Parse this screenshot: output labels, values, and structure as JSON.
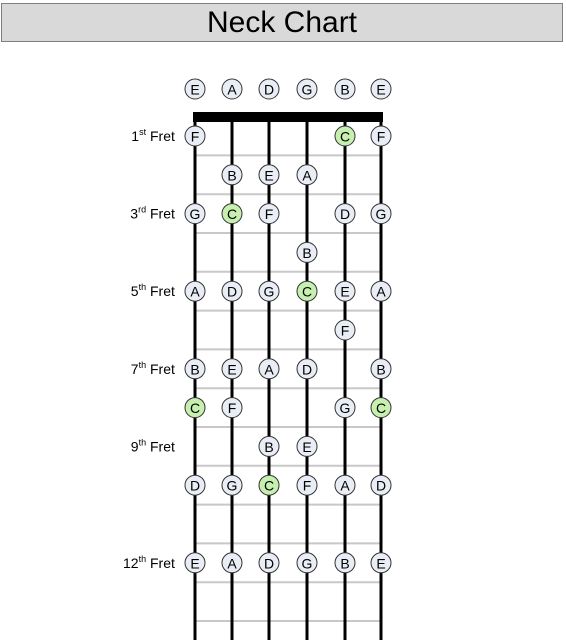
{
  "title": "Neck Chart",
  "colors": {
    "background": "#ffffff",
    "title_bg": "#d9d9d9",
    "fret_line": "#c8c8c8",
    "string_line": "#000000",
    "nut": "#000000",
    "note_fill": "#e9edf5",
    "note_highlight": "#c6efb0",
    "note_stroke": "#333333"
  },
  "open_strings": [
    "E",
    "A",
    "D",
    "G",
    "B",
    "E"
  ],
  "fret_labels": [
    {
      "fret": 1,
      "num": "1",
      "sup": "st",
      "word": "Fret"
    },
    {
      "fret": 3,
      "num": "3",
      "sup": "rd",
      "word": "Fret"
    },
    {
      "fret": 5,
      "num": "5",
      "sup": "th",
      "word": "Fret"
    },
    {
      "fret": 7,
      "num": "7",
      "sup": "th",
      "word": "Fret"
    },
    {
      "fret": 9,
      "num": "9",
      "sup": "th",
      "word": "Fret"
    },
    {
      "fret": 12,
      "num": "12",
      "sup": "th",
      "word": "Fret"
    }
  ],
  "highlight_note": "C",
  "notes": [
    {
      "fret": 1,
      "string": 1,
      "note": "F"
    },
    {
      "fret": 1,
      "string": 5,
      "note": "C"
    },
    {
      "fret": 1,
      "string": 6,
      "note": "F"
    },
    {
      "fret": 2,
      "string": 2,
      "note": "B"
    },
    {
      "fret": 2,
      "string": 3,
      "note": "E"
    },
    {
      "fret": 2,
      "string": 4,
      "note": "A"
    },
    {
      "fret": 3,
      "string": 1,
      "note": "G"
    },
    {
      "fret": 3,
      "string": 2,
      "note": "C"
    },
    {
      "fret": 3,
      "string": 3,
      "note": "F"
    },
    {
      "fret": 3,
      "string": 5,
      "note": "D"
    },
    {
      "fret": 3,
      "string": 6,
      "note": "G"
    },
    {
      "fret": 4,
      "string": 4,
      "note": "B"
    },
    {
      "fret": 5,
      "string": 1,
      "note": "A"
    },
    {
      "fret": 5,
      "string": 2,
      "note": "D"
    },
    {
      "fret": 5,
      "string": 3,
      "note": "G"
    },
    {
      "fret": 5,
      "string": 4,
      "note": "C"
    },
    {
      "fret": 5,
      "string": 5,
      "note": "E"
    },
    {
      "fret": 5,
      "string": 6,
      "note": "A"
    },
    {
      "fret": 6,
      "string": 5,
      "note": "F"
    },
    {
      "fret": 7,
      "string": 1,
      "note": "B"
    },
    {
      "fret": 7,
      "string": 2,
      "note": "E"
    },
    {
      "fret": 7,
      "string": 3,
      "note": "A"
    },
    {
      "fret": 7,
      "string": 4,
      "note": "D"
    },
    {
      "fret": 7,
      "string": 6,
      "note": "B"
    },
    {
      "fret": 8,
      "string": 1,
      "note": "C"
    },
    {
      "fret": 8,
      "string": 2,
      "note": "F"
    },
    {
      "fret": 8,
      "string": 5,
      "note": "G"
    },
    {
      "fret": 8,
      "string": 6,
      "note": "C"
    },
    {
      "fret": 9,
      "string": 3,
      "note": "B"
    },
    {
      "fret": 9,
      "string": 4,
      "note": "E"
    },
    {
      "fret": 10,
      "string": 1,
      "note": "D"
    },
    {
      "fret": 10,
      "string": 2,
      "note": "G"
    },
    {
      "fret": 10,
      "string": 3,
      "note": "C"
    },
    {
      "fret": 10,
      "string": 4,
      "note": "F"
    },
    {
      "fret": 10,
      "string": 5,
      "note": "A"
    },
    {
      "fret": 10,
      "string": 6,
      "note": "D"
    },
    {
      "fret": 12,
      "string": 1,
      "note": "E"
    },
    {
      "fret": 12,
      "string": 2,
      "note": "A"
    },
    {
      "fret": 12,
      "string": 3,
      "note": "D"
    },
    {
      "fret": 12,
      "string": 4,
      "note": "G"
    },
    {
      "fret": 12,
      "string": 5,
      "note": "B"
    },
    {
      "fret": 12,
      "string": 6,
      "note": "E"
    }
  ]
}
